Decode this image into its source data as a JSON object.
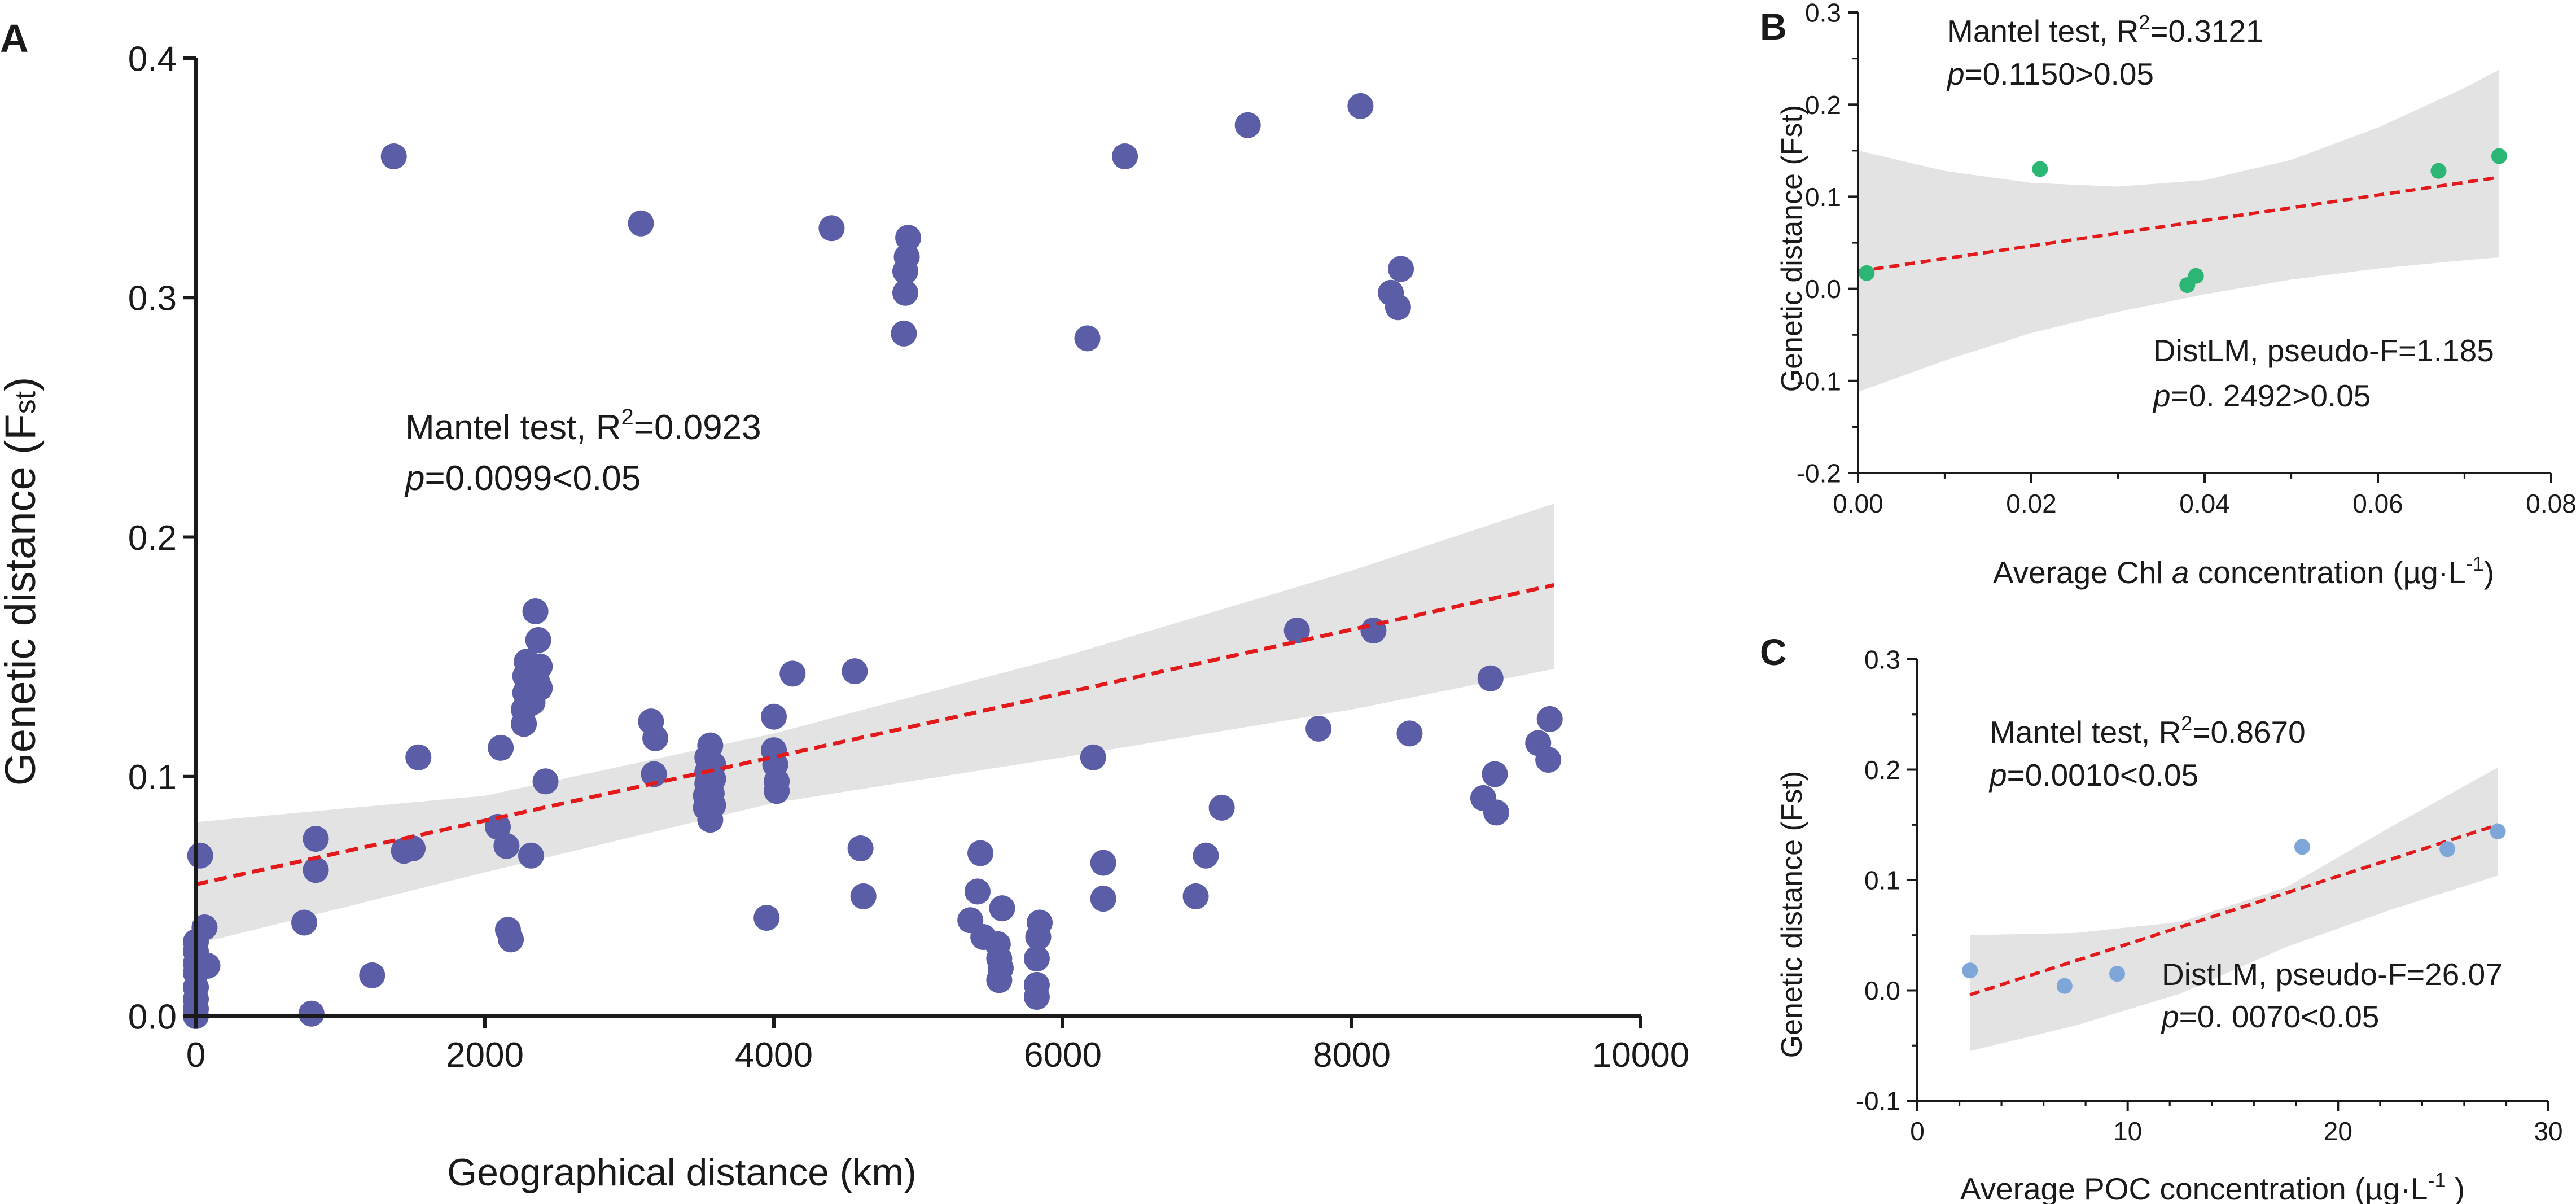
{
  "colors": {
    "trend_line": "#e31a1c",
    "ci_band": "#e3e3e3",
    "axis": "#1a1a1a",
    "points_a": "#5b5ea6",
    "points_b": "#2bb673",
    "points_c": "#7fa6d8"
  },
  "chart_data": [
    {
      "id": "A",
      "type": "scatter",
      "panel_label": "A",
      "xlabel": "Geographical distance (km)",
      "ylabel_main": "Genetic distance (F",
      "ylabel_sub": "st",
      "ylabel_close": ")",
      "xlim": [
        0,
        10000
      ],
      "ylim": [
        0,
        0.4
      ],
      "xticks": [
        0,
        2000,
        4000,
        6000,
        8000,
        10000
      ],
      "yticks": [
        0.0,
        0.1,
        0.2,
        0.3,
        0.4
      ],
      "xtick_labels": [
        "0",
        "2000",
        "4000",
        "6000",
        "8000",
        "10000"
      ],
      "ytick_labels": [
        "0.0",
        "0.1",
        "0.2",
        "0.3",
        "0.4"
      ],
      "annotation": {
        "line1_prefix": "Mantel test, R",
        "line1_sup": "2",
        "line1_suffix": "=0.0923",
        "line2_p": "p",
        "line2_rest": "=0.0099<0.05"
      },
      "trend": {
        "x0": 0,
        "y0": 0.055,
        "x1": 9400,
        "y1": 0.18
      },
      "ci_band": {
        "x": [
          0,
          2000,
          4000,
          6000,
          8000,
          9400
        ],
        "upper": [
          0.081,
          0.092,
          0.118,
          0.15,
          0.186,
          0.214
        ],
        "lower": [
          0.03,
          0.06,
          0.089,
          0.108,
          0.128,
          0.145
        ]
      },
      "points": [
        {
          "x": 0,
          "y": 0.0
        },
        {
          "x": 0,
          "y": 0.003
        },
        {
          "x": 0,
          "y": 0.007
        },
        {
          "x": 0,
          "y": 0.012
        },
        {
          "x": 0,
          "y": 0.018
        },
        {
          "x": 0,
          "y": 0.022
        },
        {
          "x": 0,
          "y": 0.027
        },
        {
          "x": 0,
          "y": 0.031
        },
        {
          "x": 30,
          "y": 0.067
        },
        {
          "x": 60,
          "y": 0.037
        },
        {
          "x": 80,
          "y": 0.021
        },
        {
          "x": 750,
          "y": 0.039
        },
        {
          "x": 800,
          "y": 0.001
        },
        {
          "x": 830,
          "y": 0.074
        },
        {
          "x": 830,
          "y": 0.061
        },
        {
          "x": 1220,
          "y": 0.017
        },
        {
          "x": 1370,
          "y": 0.359
        },
        {
          "x": 1440,
          "y": 0.069
        },
        {
          "x": 1500,
          "y": 0.07
        },
        {
          "x": 1540,
          "y": 0.108
        },
        {
          "x": 2090,
          "y": 0.079
        },
        {
          "x": 2110,
          "y": 0.112
        },
        {
          "x": 2150,
          "y": 0.071
        },
        {
          "x": 2160,
          "y": 0.036
        },
        {
          "x": 2180,
          "y": 0.032
        },
        {
          "x": 2270,
          "y": 0.122
        },
        {
          "x": 2270,
          "y": 0.128
        },
        {
          "x": 2280,
          "y": 0.135
        },
        {
          "x": 2280,
          "y": 0.142
        },
        {
          "x": 2290,
          "y": 0.148
        },
        {
          "x": 2320,
          "y": 0.067
        },
        {
          "x": 2330,
          "y": 0.131
        },
        {
          "x": 2350,
          "y": 0.169
        },
        {
          "x": 2360,
          "y": 0.14
        },
        {
          "x": 2370,
          "y": 0.157
        },
        {
          "x": 2380,
          "y": 0.137
        },
        {
          "x": 2380,
          "y": 0.146
        },
        {
          "x": 2420,
          "y": 0.098
        },
        {
          "x": 3080,
          "y": 0.331
        },
        {
          "x": 3150,
          "y": 0.123
        },
        {
          "x": 3170,
          "y": 0.101
        },
        {
          "x": 3180,
          "y": 0.116
        },
        {
          "x": 3530,
          "y": 0.087
        },
        {
          "x": 3530,
          "y": 0.092
        },
        {
          "x": 3540,
          "y": 0.097
        },
        {
          "x": 3540,
          "y": 0.102
        },
        {
          "x": 3540,
          "y": 0.108
        },
        {
          "x": 3560,
          "y": 0.082
        },
        {
          "x": 3560,
          "y": 0.113
        },
        {
          "x": 3570,
          "y": 0.093
        },
        {
          "x": 3580,
          "y": 0.088
        },
        {
          "x": 3580,
          "y": 0.099
        },
        {
          "x": 3580,
          "y": 0.105
        },
        {
          "x": 3950,
          "y": 0.041
        },
        {
          "x": 4000,
          "y": 0.125
        },
        {
          "x": 4000,
          "y": 0.111
        },
        {
          "x": 4010,
          "y": 0.105
        },
        {
          "x": 4020,
          "y": 0.098
        },
        {
          "x": 4020,
          "y": 0.094
        },
        {
          "x": 4130,
          "y": 0.143
        },
        {
          "x": 4400,
          "y": 0.329
        },
        {
          "x": 4560,
          "y": 0.144
        },
        {
          "x": 4600,
          "y": 0.07
        },
        {
          "x": 4620,
          "y": 0.05
        },
        {
          "x": 4900,
          "y": 0.285
        },
        {
          "x": 4910,
          "y": 0.302
        },
        {
          "x": 4910,
          "y": 0.311
        },
        {
          "x": 4920,
          "y": 0.317
        },
        {
          "x": 4930,
          "y": 0.325
        },
        {
          "x": 5360,
          "y": 0.04
        },
        {
          "x": 5410,
          "y": 0.052
        },
        {
          "x": 5430,
          "y": 0.068
        },
        {
          "x": 5450,
          "y": 0.033
        },
        {
          "x": 5550,
          "y": 0.03
        },
        {
          "x": 5560,
          "y": 0.024
        },
        {
          "x": 5560,
          "y": 0.015
        },
        {
          "x": 5570,
          "y": 0.02
        },
        {
          "x": 5580,
          "y": 0.045
        },
        {
          "x": 5820,
          "y": 0.008
        },
        {
          "x": 5820,
          "y": 0.013
        },
        {
          "x": 5820,
          "y": 0.024
        },
        {
          "x": 5830,
          "y": 0.033
        },
        {
          "x": 5840,
          "y": 0.039
        },
        {
          "x": 6170,
          "y": 0.283
        },
        {
          "x": 6210,
          "y": 0.108
        },
        {
          "x": 6280,
          "y": 0.064
        },
        {
          "x": 6280,
          "y": 0.049
        },
        {
          "x": 6430,
          "y": 0.359
        },
        {
          "x": 6920,
          "y": 0.05
        },
        {
          "x": 6990,
          "y": 0.067
        },
        {
          "x": 7100,
          "y": 0.087
        },
        {
          "x": 7280,
          "y": 0.372
        },
        {
          "x": 7620,
          "y": 0.161
        },
        {
          "x": 7770,
          "y": 0.12
        },
        {
          "x": 8060,
          "y": 0.38
        },
        {
          "x": 8150,
          "y": 0.161
        },
        {
          "x": 8270,
          "y": 0.302
        },
        {
          "x": 8320,
          "y": 0.296
        },
        {
          "x": 8340,
          "y": 0.312
        },
        {
          "x": 8400,
          "y": 0.118
        },
        {
          "x": 8910,
          "y": 0.091
        },
        {
          "x": 8960,
          "y": 0.141
        },
        {
          "x": 8990,
          "y": 0.101
        },
        {
          "x": 9000,
          "y": 0.085
        },
        {
          "x": 9290,
          "y": 0.114
        },
        {
          "x": 9360,
          "y": 0.107
        },
        {
          "x": 9370,
          "y": 0.124
        }
      ]
    },
    {
      "id": "B",
      "type": "scatter",
      "panel_label": "B",
      "xlabel_prefix": "Average Chl ",
      "xlabel_italic": "a",
      "xlabel_suffix": "  concentration (µg·L",
      "xlabel_sup": "-1",
      "xlabel_close": ")",
      "ylabel": "Genetic distance (Fst)",
      "xlim": [
        0,
        0.08
      ],
      "ylim": [
        -0.2,
        0.3
      ],
      "xticks": [
        0,
        0.02,
        0.04,
        0.06,
        0.08
      ],
      "yticks": [
        -0.2,
        -0.1,
        0.0,
        0.1,
        0.2,
        0.3
      ],
      "xtick_labels": [
        "0.00",
        "0.02",
        "0.04",
        "0.06",
        "0.08"
      ],
      "ytick_labels": [
        "-0.2",
        "-0.1",
        "0.0",
        "0.1",
        "0.2",
        "0.3"
      ],
      "annotation_top": {
        "line1_prefix": "Mantel test, R",
        "line1_sup": "2",
        "line1_suffix": "=0.3121",
        "line2_p": "p",
        "line2_rest": "=0.1150>0.05"
      },
      "annotation_bottom": {
        "line1": "DistLM, pseudo-F=1.185",
        "line2_p": "p",
        "line2_rest": "=0. 2492>0.05"
      },
      "trend": {
        "x0": 0.0,
        "y0": 0.019,
        "x1": 0.074,
        "y1": 0.121
      },
      "ci_band": {
        "x": [
          0.0,
          0.01,
          0.02,
          0.03,
          0.04,
          0.05,
          0.06,
          0.07,
          0.074
        ],
        "upper": [
          0.15,
          0.128,
          0.115,
          0.111,
          0.118,
          0.14,
          0.175,
          0.218,
          0.238
        ],
        "lower": [
          -0.112,
          -0.078,
          -0.048,
          -0.025,
          -0.006,
          0.01,
          0.022,
          0.031,
          0.034
        ]
      },
      "points": [
        {
          "x": 0.001,
          "y": 0.017
        },
        {
          "x": 0.021,
          "y": 0.13
        },
        {
          "x": 0.038,
          "y": 0.004
        },
        {
          "x": 0.039,
          "y": 0.014
        },
        {
          "x": 0.067,
          "y": 0.128
        },
        {
          "x": 0.074,
          "y": 0.144
        }
      ]
    },
    {
      "id": "C",
      "type": "scatter",
      "panel_label": "C",
      "xlabel_prefix": "Average POC concentration (µg·L",
      "xlabel_sup": "-1",
      "xlabel_close": " )",
      "ylabel": "Genetic distance (Fst)",
      "xlim": [
        0,
        30
      ],
      "ylim": [
        -0.1,
        0.3
      ],
      "xticks": [
        0,
        10,
        20,
        30
      ],
      "yticks": [
        -0.1,
        0.0,
        0.1,
        0.2,
        0.3
      ],
      "xtick_labels": [
        "0",
        "10",
        "20",
        "30"
      ],
      "ytick_labels": [
        "-0.1",
        "0.0",
        "0.1",
        "0.2",
        "0.3"
      ],
      "annotation_top": {
        "line1_prefix": "Mantel test, R",
        "line1_sup": "2",
        "line1_suffix": "=0.8670",
        "line2_p": "p",
        "line2_rest": "=0.0010<0.05"
      },
      "annotation_bottom": {
        "line1": "DistLM, pseudo-F=26.07",
        "line2_p": "p",
        "line2_rest": "=0. 0070<0.05"
      },
      "trend": {
        "x0": 2.5,
        "y0": -0.004,
        "x1": 27.6,
        "y1": 0.15
      },
      "ci_band": {
        "x": [
          2.5,
          7.5,
          12.5,
          17.5,
          22.5,
          27.6
        ],
        "upper": [
          0.05,
          0.052,
          0.062,
          0.093,
          0.148,
          0.202
        ],
        "lower": [
          -0.055,
          -0.032,
          -0.003,
          0.039,
          0.073,
          0.104
        ]
      },
      "points": [
        {
          "x": 2.5,
          "y": 0.018
        },
        {
          "x": 7.0,
          "y": 0.004
        },
        {
          "x": 9.5,
          "y": 0.015
        },
        {
          "x": 18.3,
          "y": 0.13
        },
        {
          "x": 25.2,
          "y": 0.128
        },
        {
          "x": 27.6,
          "y": 0.144
        }
      ]
    }
  ]
}
